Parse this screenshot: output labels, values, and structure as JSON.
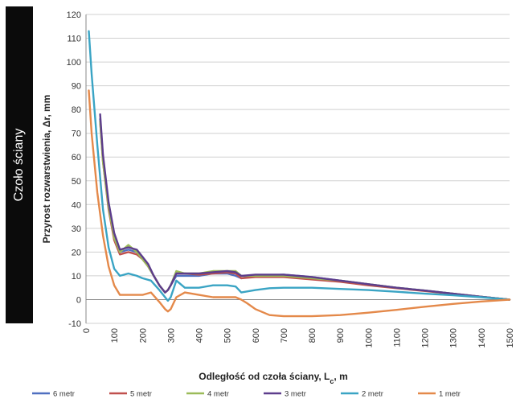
{
  "side_label": "Czoło ściany",
  "chart_data": {
    "type": "line",
    "xlabel": "Odległość od czoła ściany, Lc, m",
    "xlabel_main": "Odległość od czoła ściany, L",
    "xlabel_sub": "c",
    "xlabel_suffix": ", m",
    "ylabel": "Przyrost rozwarstwienia, Δr, mm",
    "xlim": [
      0,
      1500
    ],
    "ylim": [
      -10,
      120
    ],
    "x_ticks": [
      0,
      100,
      200,
      300,
      400,
      500,
      600,
      700,
      800,
      900,
      1000,
      1100,
      1200,
      1300,
      1400,
      1500
    ],
    "y_ticks": [
      -10,
      0,
      10,
      20,
      30,
      40,
      50,
      60,
      70,
      80,
      90,
      100,
      110,
      120
    ],
    "grid": "horizontal",
    "legend_position": "bottom",
    "series": [
      {
        "name": "6 metr",
        "color": "#4f6fc0",
        "x": [
          50,
          60,
          80,
          100,
          120,
          150,
          180,
          200,
          220,
          240,
          260,
          280,
          290,
          300,
          320,
          350,
          400,
          450,
          500,
          530,
          550,
          600,
          700,
          800,
          900,
          1000,
          1100,
          1200,
          1300,
          1400,
          1500
        ],
        "y": [
          76,
          60,
          40,
          27,
          20,
          21,
          20,
          18,
          14,
          10,
          6,
          3,
          4,
          6,
          10,
          10,
          10,
          11,
          11,
          10,
          9,
          10,
          10.5,
          9.5,
          8,
          6.5,
          5,
          3.8,
          2.5,
          1.2,
          0
        ]
      },
      {
        "name": "5 metr",
        "color": "#c0504d",
        "x": [
          50,
          60,
          80,
          100,
          120,
          150,
          180,
          200,
          220,
          240,
          260,
          280,
          290,
          300,
          320,
          350,
          400,
          450,
          500,
          530,
          550,
          600,
          700,
          800,
          900,
          1000,
          1100,
          1200,
          1300,
          1400,
          1500
        ],
        "y": [
          75,
          58,
          38,
          25,
          19,
          20,
          19,
          17,
          14,
          10,
          6,
          3,
          4,
          6,
          11,
          11,
          10.5,
          11,
          11.5,
          11,
          9,
          9.5,
          9.5,
          8.5,
          7.5,
          6,
          4.8,
          3.6,
          2.4,
          1.2,
          0
        ]
      },
      {
        "name": "4 metr",
        "color": "#9bbb59",
        "x": [
          50,
          60,
          80,
          100,
          120,
          150,
          180,
          200,
          220,
          240,
          260,
          280,
          290,
          300,
          320,
          350,
          400,
          450,
          500,
          530,
          550,
          600,
          700,
          800,
          900,
          1000,
          1100,
          1200,
          1300,
          1400,
          1500
        ],
        "y": [
          75,
          58,
          39,
          26,
          20,
          23,
          20,
          17,
          14,
          10,
          6,
          3,
          4,
          6,
          12,
          11,
          11,
          12,
          12,
          12,
          10,
          10,
          10,
          9,
          8,
          6.5,
          5,
          3.8,
          2.5,
          1.2,
          0
        ]
      },
      {
        "name": "3 metr",
        "color": "#5d3d8c",
        "x": [
          50,
          60,
          80,
          100,
          120,
          150,
          180,
          200,
          220,
          240,
          260,
          280,
          290,
          300,
          320,
          350,
          400,
          450,
          500,
          530,
          550,
          600,
          700,
          800,
          900,
          1000,
          1100,
          1200,
          1300,
          1400,
          1500
        ],
        "y": [
          78,
          61,
          41,
          28,
          21,
          22,
          21,
          18,
          15,
          10,
          6,
          3,
          4,
          6,
          11,
          11,
          11,
          11.5,
          12,
          11.5,
          10,
          10.5,
          10.5,
          9.5,
          8,
          6.5,
          5,
          3.8,
          2.5,
          1.2,
          0
        ]
      },
      {
        "name": "2 metr",
        "color": "#3aa4c4",
        "x": [
          10,
          20,
          40,
          60,
          80,
          100,
          120,
          150,
          180,
          200,
          230,
          260,
          280,
          290,
          300,
          320,
          350,
          400,
          450,
          500,
          530,
          550,
          600,
          650,
          700,
          800,
          900,
          1000,
          1100,
          1200,
          1300,
          1400,
          1500
        ],
        "y": [
          113,
          95,
          65,
          38,
          22,
          13,
          10,
          11,
          10,
          9,
          8,
          4,
          1,
          -0.5,
          1,
          8,
          5,
          5,
          6,
          6,
          5.5,
          3,
          4,
          4.8,
          5,
          5,
          4.5,
          4,
          3.3,
          2.5,
          1.8,
          1,
          0
        ]
      },
      {
        "name": "1 metr",
        "color": "#e4894a",
        "x": [
          10,
          20,
          40,
          60,
          80,
          100,
          120,
          150,
          180,
          200,
          230,
          260,
          280,
          290,
          300,
          320,
          350,
          400,
          450,
          500,
          530,
          550,
          570,
          600,
          650,
          700,
          800,
          900,
          1000,
          1100,
          1200,
          1300,
          1400,
          1500
        ],
        "y": [
          88,
          70,
          45,
          27,
          14,
          6,
          2,
          2,
          2,
          2,
          3,
          -1,
          -4,
          -5,
          -4,
          1,
          3,
          2,
          1,
          1,
          1,
          0,
          -1.5,
          -4,
          -6.5,
          -7,
          -7,
          -6.5,
          -5.5,
          -4.3,
          -3,
          -1.8,
          -0.8,
          0
        ]
      }
    ]
  }
}
